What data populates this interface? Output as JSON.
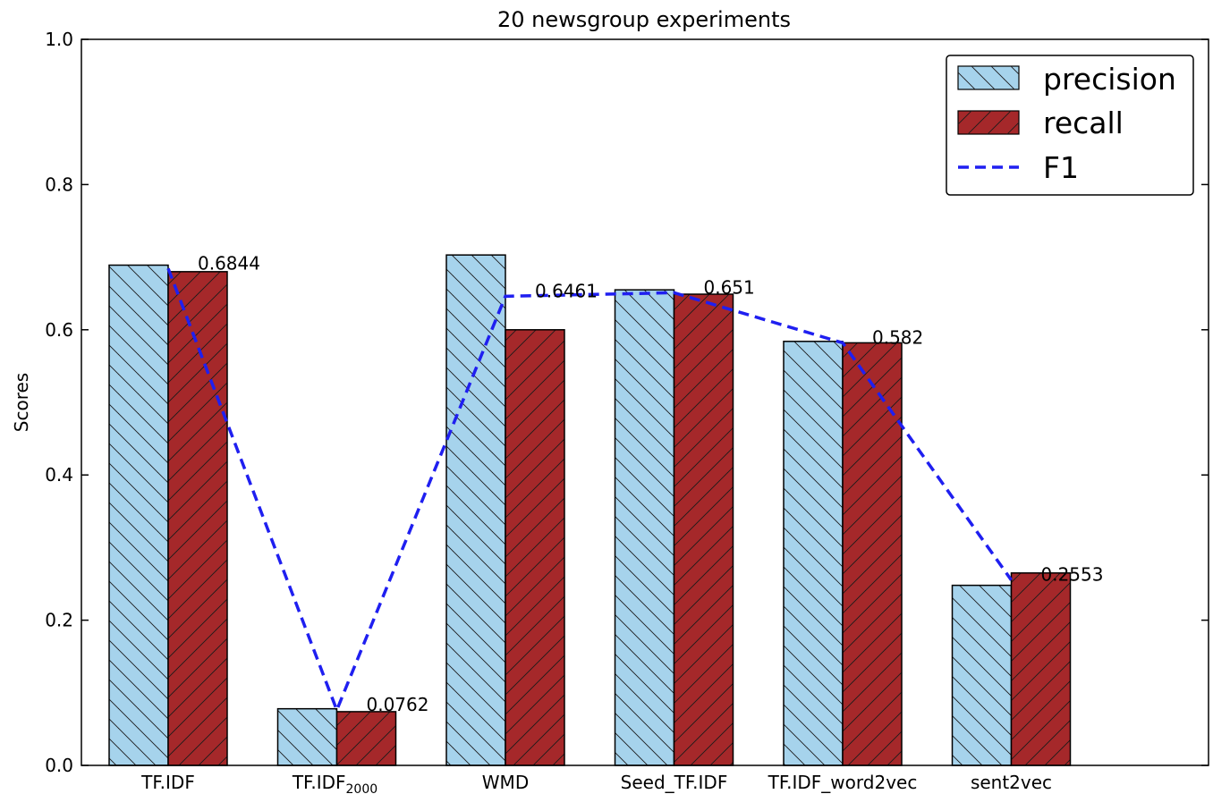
{
  "chart_data": {
    "type": "bar",
    "title": "20 newsgroup experiments",
    "xlabel": "",
    "ylabel": "Scores",
    "ylim": [
      0,
      1.0
    ],
    "yticks": [
      "0.0",
      "0.2",
      "0.4",
      "0.6",
      "0.8",
      "1.0"
    ],
    "categories": [
      "TF.IDF",
      "TF.IDF",
      "WMD",
      "Seed_TF.IDF",
      "TF.IDF_word2vec",
      "sent2vec"
    ],
    "category_subscripts": [
      "",
      "2000",
      "",
      "",
      "",
      ""
    ],
    "series": [
      {
        "name": "precision",
        "kind": "bar",
        "color": "#a6d3ec",
        "hatch": "backslash",
        "values": [
          0.689,
          0.078,
          0.703,
          0.655,
          0.584,
          0.248
        ]
      },
      {
        "name": "recall",
        "kind": "bar",
        "color": "#a5282a",
        "hatch": "slash",
        "values": [
          0.68,
          0.074,
          0.6,
          0.649,
          0.582,
          0.265
        ]
      },
      {
        "name": "F1",
        "kind": "line",
        "color": "#1f1ff0",
        "linestyle": "dashed",
        "values": [
          0.6844,
          0.0762,
          0.6461,
          0.651,
          0.582,
          0.2553
        ],
        "labels": [
          "0.6844",
          "0.0762",
          "0.6461",
          "0.651",
          "0.582",
          "0.2553"
        ]
      }
    ],
    "legend_position": "top-right",
    "grid": false
  }
}
